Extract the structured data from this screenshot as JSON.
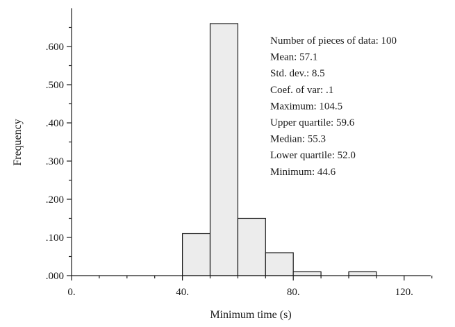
{
  "chart_data": {
    "type": "bar",
    "title": "",
    "xlabel": "Minimum time (s)",
    "ylabel": "Frequency",
    "xlim": [
      0,
      130
    ],
    "ylim": [
      0,
      0.7
    ],
    "x_ticks": [
      {
        "value": 0,
        "label": "0."
      },
      {
        "value": 40,
        "label": "40."
      },
      {
        "value": 80,
        "label": "80."
      },
      {
        "value": 120,
        "label": "120."
      }
    ],
    "y_ticks": [
      {
        "value": 0.0,
        "label": ".000"
      },
      {
        "value": 0.1,
        "label": ".100"
      },
      {
        "value": 0.2,
        "label": ".200"
      },
      {
        "value": 0.3,
        "label": ".300"
      },
      {
        "value": 0.4,
        "label": ".400"
      },
      {
        "value": 0.5,
        "label": ".500"
      },
      {
        "value": 0.6,
        "label": ".600"
      }
    ],
    "bins": [
      {
        "from": 40,
        "to": 50,
        "value": 0.11
      },
      {
        "from": 50,
        "to": 60,
        "value": 0.66
      },
      {
        "from": 60,
        "to": 70,
        "value": 0.15
      },
      {
        "from": 70,
        "to": 80,
        "value": 0.06
      },
      {
        "from": 80,
        "to": 90,
        "value": 0.01
      },
      {
        "from": 100,
        "to": 110,
        "value": 0.01
      }
    ],
    "statistics": [
      "Number of pieces of data: 100",
      "Mean: 57.1",
      "Std. dev.: 8.5",
      "Coef. of var: .1",
      "Maximum: 104.5",
      "Upper quartile: 59.6",
      "Median: 55.3",
      "Lower quartile: 52.0",
      "Minimum: 44.6"
    ],
    "colors": {
      "bar_fill": "#ececec",
      "bar_stroke": "#1a1a1a"
    }
  }
}
